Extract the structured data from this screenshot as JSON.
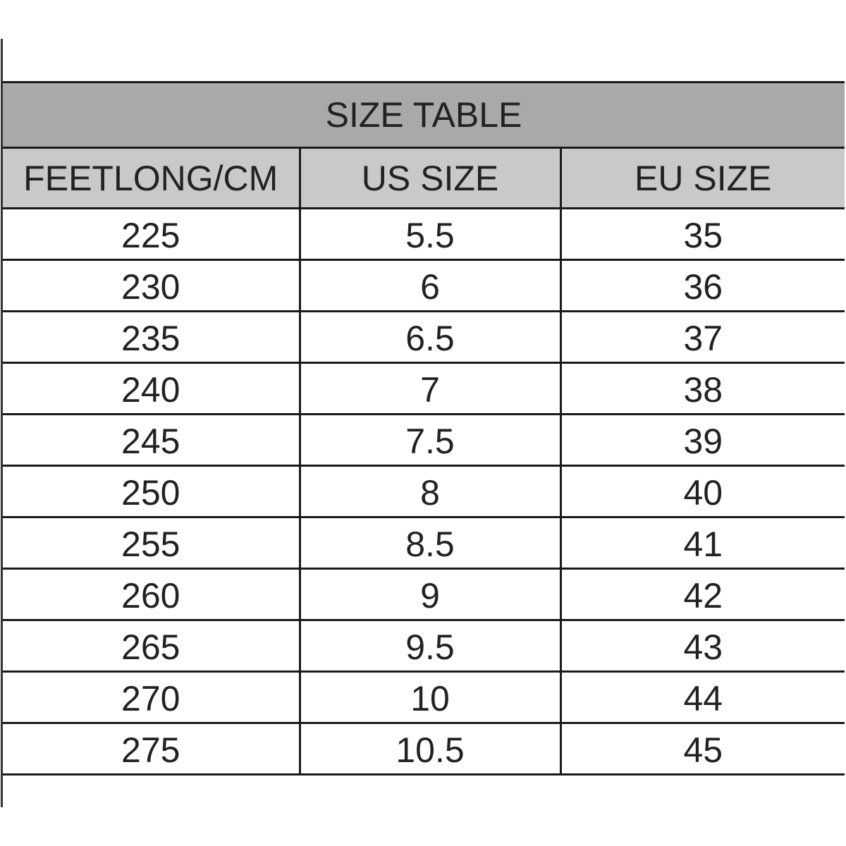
{
  "table": {
    "title": "SIZE TABLE",
    "headers": [
      "FEETLONG/CM",
      "US SIZE",
      "EU SIZE"
    ],
    "rows": [
      [
        "225",
        "5.5",
        "35"
      ],
      [
        "230",
        "6",
        "36"
      ],
      [
        "235",
        "6.5",
        "37"
      ],
      [
        "240",
        "7",
        "38"
      ],
      [
        "245",
        "7.5",
        "39"
      ],
      [
        "250",
        "8",
        "40"
      ],
      [
        "255",
        "8.5",
        "41"
      ],
      [
        "260",
        "9",
        "42"
      ],
      [
        "265",
        "9.5",
        "43"
      ],
      [
        "270",
        "10",
        "44"
      ],
      [
        "275",
        "10.5",
        "45"
      ]
    ]
  },
  "colors": {
    "title_bg": "#a9a9a9",
    "header_bg": "#c9c9c9",
    "border": "#1a1a1a"
  }
}
